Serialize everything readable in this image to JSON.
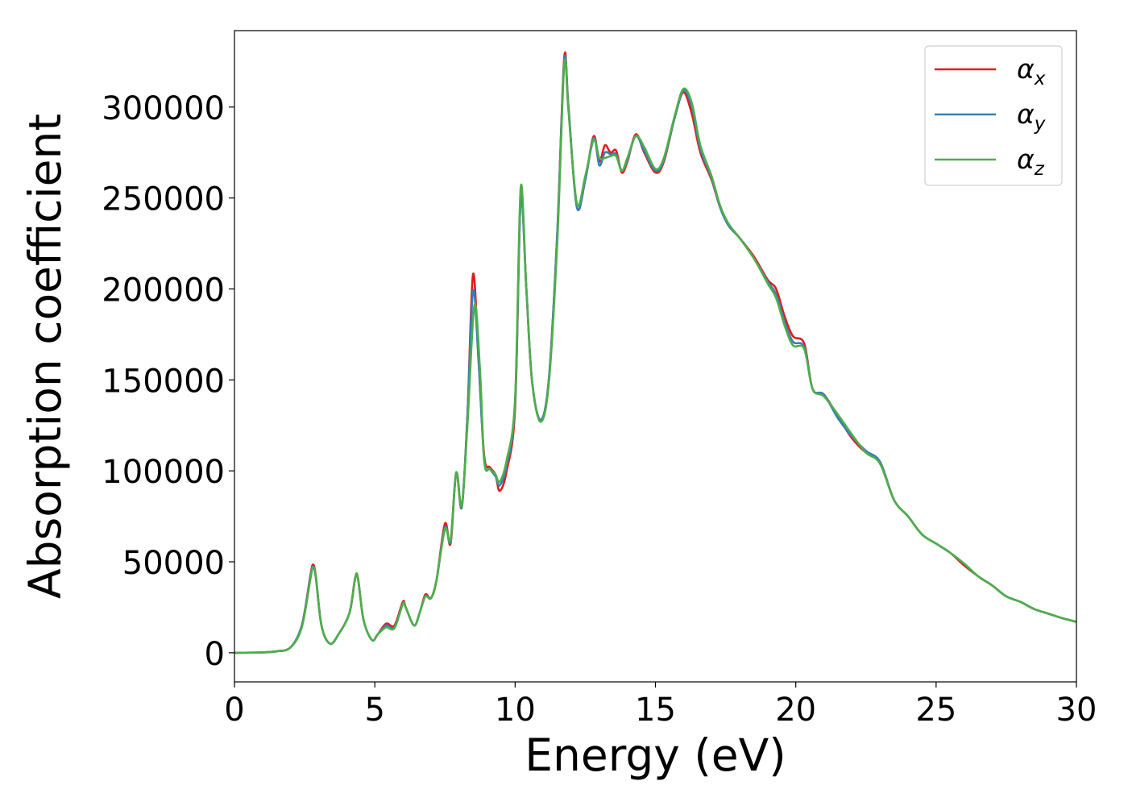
{
  "chart_data": {
    "type": "line",
    "xlabel": "Energy (eV)",
    "ylabel": "Absorption coefficient",
    "xlim": [
      0,
      30
    ],
    "ylim": [
      -16000,
      342000
    ],
    "x_ticks": [
      0,
      5,
      10,
      15,
      20,
      25,
      30
    ],
    "x_tick_labels": [
      "0",
      "5",
      "10",
      "15",
      "20",
      "25",
      "30"
    ],
    "y_ticks": [
      0,
      50000,
      100000,
      150000,
      200000,
      250000,
      300000
    ],
    "y_tick_labels": [
      "0",
      "50000",
      "100000",
      "150000",
      "200000",
      "250000",
      "300000"
    ],
    "grid": false,
    "legend_position": "top-right",
    "series": [
      {
        "name": "α_x",
        "legend_base": "α",
        "legend_sub": "x",
        "color": "#e41a1c",
        "points": [
          [
            0,
            0
          ],
          [
            1,
            200
          ],
          [
            1.5,
            800
          ],
          [
            2,
            3000
          ],
          [
            2.4,
            15000
          ],
          [
            2.7,
            42000
          ],
          [
            2.8,
            48500
          ],
          [
            2.9,
            42000
          ],
          [
            3.1,
            15000
          ],
          [
            3.4,
            5000
          ],
          [
            3.7,
            10000
          ],
          [
            4.1,
            22000
          ],
          [
            4.3,
            41000
          ],
          [
            4.4,
            41000
          ],
          [
            4.6,
            18000
          ],
          [
            4.9,
            7000
          ],
          [
            5.1,
            10000
          ],
          [
            5.4,
            16000
          ],
          [
            5.7,
            15000
          ],
          [
            6,
            28000
          ],
          [
            6.1,
            25000
          ],
          [
            6.4,
            15000
          ],
          [
            6.6,
            22000
          ],
          [
            6.8,
            32000
          ],
          [
            7,
            30000
          ],
          [
            7.2,
            40000
          ],
          [
            7.5,
            71000
          ],
          [
            7.7,
            60000
          ],
          [
            7.9,
            99000
          ],
          [
            8.1,
            80000
          ],
          [
            8.3,
            130000
          ],
          [
            8.5,
            208000
          ],
          [
            8.7,
            160000
          ],
          [
            8.9,
            108000
          ],
          [
            9.1,
            102000
          ],
          [
            9.3,
            98000
          ],
          [
            9.45,
            89000
          ],
          [
            9.7,
            100000
          ],
          [
            10,
            135000
          ],
          [
            10.2,
            250000
          ],
          [
            10.4,
            200000
          ],
          [
            10.6,
            150000
          ],
          [
            10.9,
            128000
          ],
          [
            11.2,
            150000
          ],
          [
            11.5,
            230000
          ],
          [
            11.75,
            327000
          ],
          [
            11.9,
            300000
          ],
          [
            12.2,
            245000
          ],
          [
            12.5,
            260000
          ],
          [
            12.8,
            284000
          ],
          [
            13,
            270000
          ],
          [
            13.2,
            279000
          ],
          [
            13.4,
            275000
          ],
          [
            13.6,
            276000
          ],
          [
            13.8,
            264000
          ],
          [
            14,
            270000
          ],
          [
            14.3,
            285000
          ],
          [
            14.6,
            275000
          ],
          [
            15,
            264000
          ],
          [
            15.3,
            270000
          ],
          [
            15.7,
            295000
          ],
          [
            16,
            308000
          ],
          [
            16.3,
            296000
          ],
          [
            16.6,
            275000
          ],
          [
            17,
            260000
          ],
          [
            17.3,
            245000
          ],
          [
            17.6,
            235000
          ],
          [
            18,
            228000
          ],
          [
            18.5,
            218000
          ],
          [
            19,
            205000
          ],
          [
            19.3,
            200000
          ],
          [
            19.6,
            185000
          ],
          [
            19.9,
            174000
          ],
          [
            20.3,
            170000
          ],
          [
            20.6,
            145000
          ],
          [
            21,
            142000
          ],
          [
            21.5,
            130000
          ],
          [
            22,
            118000
          ],
          [
            22.5,
            110000
          ],
          [
            23,
            105000
          ],
          [
            23.5,
            84000
          ],
          [
            24,
            75000
          ],
          [
            24.5,
            65000
          ],
          [
            25,
            60000
          ],
          [
            25.5,
            55000
          ],
          [
            26,
            48000
          ],
          [
            26.5,
            42000
          ],
          [
            27,
            37000
          ],
          [
            27.5,
            31000
          ],
          [
            28,
            28000
          ],
          [
            28.5,
            24000
          ],
          [
            29,
            21500
          ],
          [
            29.5,
            19000
          ],
          [
            30,
            17000
          ]
        ]
      },
      {
        "name": "α_y",
        "legend_base": "α",
        "legend_sub": "y",
        "color": "#377eb8",
        "points": [
          [
            0,
            0
          ],
          [
            1,
            200
          ],
          [
            1.5,
            800
          ],
          [
            2,
            3000
          ],
          [
            2.4,
            15000
          ],
          [
            2.7,
            41000
          ],
          [
            2.8,
            47500
          ],
          [
            2.9,
            41500
          ],
          [
            3.1,
            15000
          ],
          [
            3.4,
            5000
          ],
          [
            3.7,
            10000
          ],
          [
            4.1,
            22000
          ],
          [
            4.3,
            41000
          ],
          [
            4.4,
            41000
          ],
          [
            4.6,
            18000
          ],
          [
            4.9,
            7000
          ],
          [
            5.1,
            10000
          ],
          [
            5.4,
            15000
          ],
          [
            5.7,
            14000
          ],
          [
            6,
            27000
          ],
          [
            6.1,
            25000
          ],
          [
            6.4,
            15000
          ],
          [
            6.6,
            22000
          ],
          [
            6.8,
            31000
          ],
          [
            7,
            30000
          ],
          [
            7.2,
            40000
          ],
          [
            7.5,
            69000
          ],
          [
            7.7,
            61000
          ],
          [
            7.9,
            99000
          ],
          [
            8.1,
            80000
          ],
          [
            8.3,
            130000
          ],
          [
            8.5,
            199000
          ],
          [
            8.7,
            160000
          ],
          [
            8.9,
            106000
          ],
          [
            9.1,
            101000
          ],
          [
            9.3,
            97000
          ],
          [
            9.45,
            92000
          ],
          [
            9.7,
            103000
          ],
          [
            10,
            138000
          ],
          [
            10.2,
            249000
          ],
          [
            10.4,
            200000
          ],
          [
            10.6,
            150000
          ],
          [
            10.9,
            128000
          ],
          [
            11.2,
            150000
          ],
          [
            11.5,
            230000
          ],
          [
            11.75,
            325000
          ],
          [
            11.9,
            300000
          ],
          [
            12.2,
            245000
          ],
          [
            12.5,
            260000
          ],
          [
            12.8,
            283000
          ],
          [
            13,
            268000
          ],
          [
            13.2,
            275000
          ],
          [
            13.4,
            274000
          ],
          [
            13.6,
            274000
          ],
          [
            13.8,
            265000
          ],
          [
            14,
            271000
          ],
          [
            14.3,
            284000
          ],
          [
            14.6,
            276000
          ],
          [
            15,
            265000
          ],
          [
            15.3,
            271000
          ],
          [
            15.7,
            295000
          ],
          [
            16,
            309000
          ],
          [
            16.3,
            300000
          ],
          [
            16.6,
            277000
          ],
          [
            17,
            261000
          ],
          [
            17.3,
            245000
          ],
          [
            17.6,
            235000
          ],
          [
            18,
            228000
          ],
          [
            18.5,
            217000
          ],
          [
            19,
            204000
          ],
          [
            19.3,
            197000
          ],
          [
            19.6,
            182000
          ],
          [
            19.9,
            171000
          ],
          [
            20.3,
            168000
          ],
          [
            20.6,
            145000
          ],
          [
            21,
            142000
          ],
          [
            21.5,
            129000
          ],
          [
            22,
            119000
          ],
          [
            22.5,
            111000
          ],
          [
            23,
            105000
          ],
          [
            23.5,
            84000
          ],
          [
            24,
            75000
          ],
          [
            24.5,
            65000
          ],
          [
            25,
            60000
          ],
          [
            25.5,
            55000
          ],
          [
            26,
            49000
          ],
          [
            26.5,
            42000
          ],
          [
            27,
            37000
          ],
          [
            27.5,
            31000
          ],
          [
            28,
            28000
          ],
          [
            28.5,
            24000
          ],
          [
            29,
            21500
          ],
          [
            29.5,
            19000
          ],
          [
            30,
            17000
          ]
        ]
      },
      {
        "name": "α_z",
        "legend_base": "α",
        "legend_sub": "z",
        "color": "#4daf4a",
        "points": [
          [
            0,
            0
          ],
          [
            1,
            200
          ],
          [
            1.5,
            800
          ],
          [
            2,
            3000
          ],
          [
            2.4,
            14000
          ],
          [
            2.7,
            40000
          ],
          [
            2.8,
            47000
          ],
          [
            2.9,
            41000
          ],
          [
            3.1,
            15000
          ],
          [
            3.4,
            5000
          ],
          [
            3.7,
            10000
          ],
          [
            4.1,
            22000
          ],
          [
            4.3,
            41000
          ],
          [
            4.4,
            41000
          ],
          [
            4.6,
            18000
          ],
          [
            4.9,
            7000
          ],
          [
            5.1,
            10000
          ],
          [
            5.4,
            14000
          ],
          [
            5.7,
            13500
          ],
          [
            6,
            27000
          ],
          [
            6.1,
            25000
          ],
          [
            6.4,
            15000
          ],
          [
            6.6,
            22000
          ],
          [
            6.8,
            31000
          ],
          [
            7,
            30000
          ],
          [
            7.2,
            40000
          ],
          [
            7.5,
            68000
          ],
          [
            7.7,
            62000
          ],
          [
            7.9,
            99000
          ],
          [
            8.1,
            81000
          ],
          [
            8.3,
            125000
          ],
          [
            8.55,
            191000
          ],
          [
            8.75,
            155000
          ],
          [
            8.9,
            105000
          ],
          [
            9.1,
            101000
          ],
          [
            9.3,
            98000
          ],
          [
            9.45,
            94000
          ],
          [
            9.7,
            106000
          ],
          [
            10,
            140000
          ],
          [
            10.2,
            256000
          ],
          [
            10.4,
            200000
          ],
          [
            10.6,
            150000
          ],
          [
            10.9,
            127000
          ],
          [
            11.2,
            148000
          ],
          [
            11.5,
            225000
          ],
          [
            11.75,
            323000
          ],
          [
            11.9,
            298000
          ],
          [
            12.2,
            247000
          ],
          [
            12.5,
            262000
          ],
          [
            12.8,
            282000
          ],
          [
            13,
            272000
          ],
          [
            13.2,
            272000
          ],
          [
            13.4,
            273000
          ],
          [
            13.6,
            273000
          ],
          [
            13.8,
            265000
          ],
          [
            14,
            272000
          ],
          [
            14.3,
            284000
          ],
          [
            14.6,
            278000
          ],
          [
            15,
            266000
          ],
          [
            15.3,
            272000
          ],
          [
            15.7,
            296000
          ],
          [
            16,
            310000
          ],
          [
            16.3,
            302000
          ],
          [
            16.6,
            279000
          ],
          [
            17,
            262000
          ],
          [
            17.3,
            246000
          ],
          [
            17.6,
            236000
          ],
          [
            18,
            228000
          ],
          [
            18.5,
            217000
          ],
          [
            19,
            203000
          ],
          [
            19.3,
            195000
          ],
          [
            19.6,
            180000
          ],
          [
            19.9,
            169000
          ],
          [
            20.3,
            167000
          ],
          [
            20.6,
            145000
          ],
          [
            21,
            141000
          ],
          [
            21.5,
            131000
          ],
          [
            22,
            120000
          ],
          [
            22.5,
            110000
          ],
          [
            23,
            104000
          ],
          [
            23.5,
            84000
          ],
          [
            24,
            75000
          ],
          [
            24.5,
            65000
          ],
          [
            25,
            60000
          ],
          [
            25.5,
            55000
          ],
          [
            26,
            49000
          ],
          [
            26.5,
            42000
          ],
          [
            27,
            37000
          ],
          [
            27.5,
            31000
          ],
          [
            28,
            28000
          ],
          [
            28.5,
            24000
          ],
          [
            29,
            21500
          ],
          [
            29.5,
            19000
          ],
          [
            30,
            17000
          ]
        ]
      }
    ]
  }
}
